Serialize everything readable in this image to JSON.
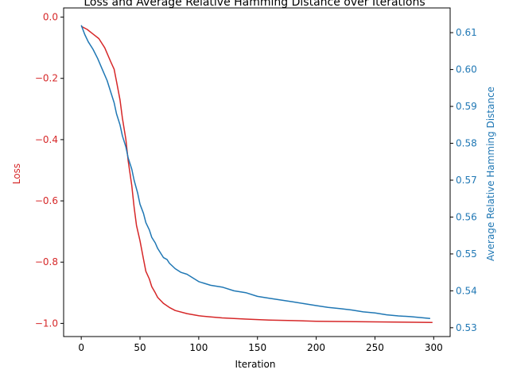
{
  "chart_data": {
    "type": "line",
    "title": "Loss and Average Relative Hamming Distance over Iterations",
    "xlabel": "Iteration",
    "xlim": [
      -15,
      314
    ],
    "xticks": [
      0,
      50,
      100,
      150,
      200,
      250,
      300
    ],
    "grid": false,
    "legend": "none",
    "left_axis": {
      "label": "Loss",
      "color": "#d62728",
      "ylim": [
        -1.043,
        0.03
      ],
      "ticks": [
        0.0,
        -0.2,
        -0.4,
        -0.6,
        -0.8,
        -1.0
      ],
      "tick_labels": [
        "0.0",
        "−0.2",
        "−0.4",
        "−0.6",
        "−0.8",
        "−1.0"
      ]
    },
    "right_axis": {
      "label": "Average Relative Hamming Distance",
      "color": "#1f77b4",
      "ylim": [
        0.5276,
        0.6167
      ],
      "ticks": [
        0.53,
        0.54,
        0.55,
        0.56,
        0.57,
        0.58,
        0.59,
        0.6,
        0.61
      ],
      "tick_labels": [
        "0.53",
        "0.54",
        "0.55",
        "0.56",
        "0.57",
        "0.58",
        "0.59",
        "0.60",
        "0.61"
      ]
    },
    "series": [
      {
        "axis": "left",
        "color": "#d62728",
        "x": [
          0,
          5,
          10,
          15,
          20,
          25,
          28,
          30,
          33,
          35,
          38,
          40,
          43,
          45,
          47,
          50,
          53,
          55,
          58,
          60,
          63,
          65,
          70,
          75,
          80,
          90,
          100,
          110,
          120,
          140,
          160,
          180,
          200,
          225,
          250,
          275,
          299
        ],
        "y": [
          -0.03,
          -0.04,
          -0.055,
          -0.07,
          -0.1,
          -0.145,
          -0.17,
          -0.21,
          -0.27,
          -0.33,
          -0.4,
          -0.47,
          -0.55,
          -0.62,
          -0.68,
          -0.73,
          -0.79,
          -0.83,
          -0.855,
          -0.88,
          -0.9,
          -0.915,
          -0.935,
          -0.948,
          -0.958,
          -0.968,
          -0.975,
          -0.979,
          -0.982,
          -0.986,
          -0.989,
          -0.991,
          -0.993,
          -0.994,
          -0.995,
          -0.996,
          -0.997
        ]
      },
      {
        "axis": "right",
        "color": "#1f77b4",
        "x": [
          0,
          3,
          6,
          10,
          14,
          18,
          22,
          25,
          28,
          30,
          33,
          35,
          38,
          40,
          43,
          45,
          48,
          50,
          53,
          55,
          58,
          60,
          63,
          65,
          68,
          70,
          73,
          75,
          80,
          85,
          90,
          95,
          100,
          110,
          120,
          130,
          140,
          150,
          160,
          170,
          180,
          190,
          200,
          210,
          220,
          230,
          240,
          250,
          260,
          270,
          280,
          290,
          297
        ],
        "y": [
          0.612,
          0.6095,
          0.6075,
          0.6055,
          0.603,
          0.6,
          0.597,
          0.594,
          0.591,
          0.588,
          0.585,
          0.582,
          0.579,
          0.576,
          0.573,
          0.57,
          0.5665,
          0.5635,
          0.561,
          0.5585,
          0.5565,
          0.5545,
          0.553,
          0.5515,
          0.55,
          0.549,
          0.5485,
          0.5475,
          0.546,
          0.545,
          0.5445,
          0.5435,
          0.5425,
          0.5415,
          0.541,
          0.54,
          0.5395,
          0.5385,
          0.538,
          0.5375,
          0.537,
          0.5365,
          0.536,
          0.5355,
          0.5352,
          0.5348,
          0.5343,
          0.534,
          0.5335,
          0.5332,
          0.533,
          0.5327,
          0.5325
        ]
      }
    ]
  }
}
